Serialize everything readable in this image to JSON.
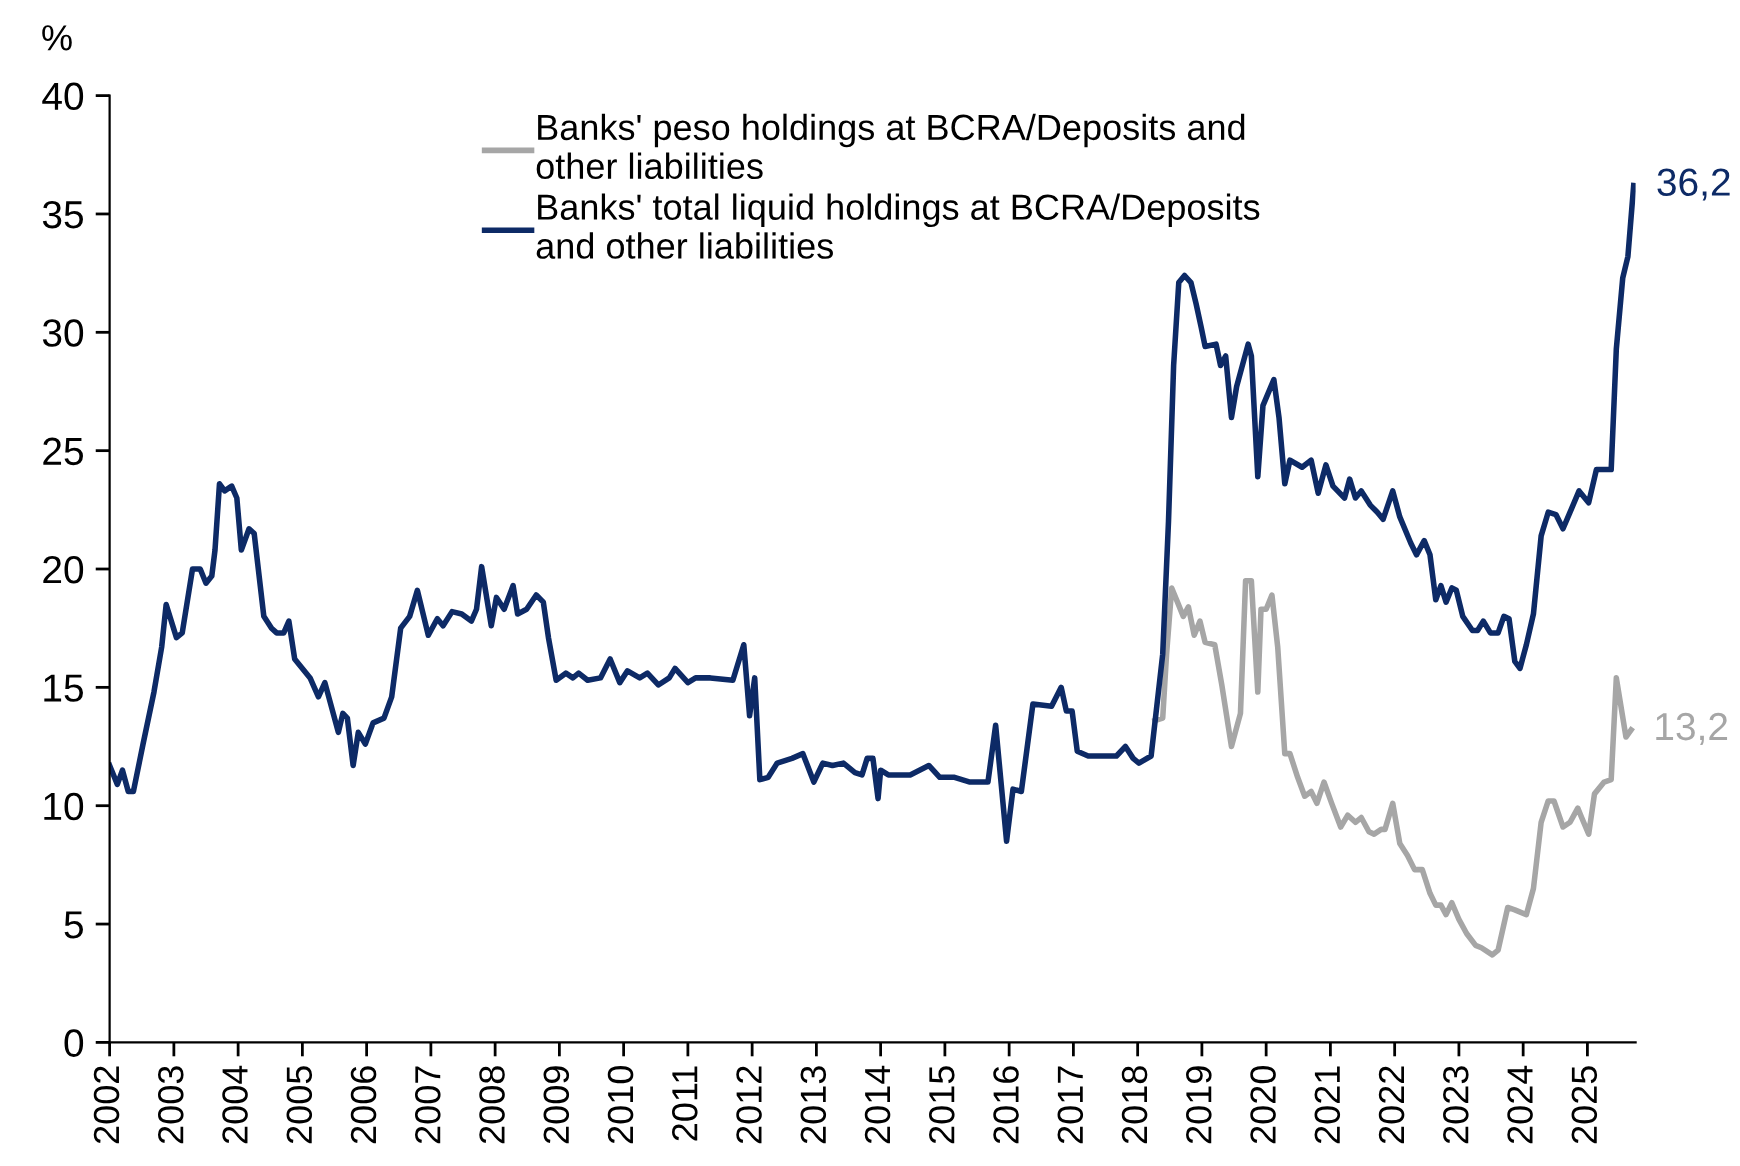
{
  "chart_data": {
    "type": "line",
    "ylabel": "%",
    "xlim": [
      2002,
      2025.75
    ],
    "xticks": [
      {
        "value": 2002,
        "label": "2002"
      },
      {
        "value": 2003,
        "label": "2003"
      },
      {
        "value": 2004,
        "label": "2004"
      },
      {
        "value": 2005,
        "label": "2005"
      },
      {
        "value": 2006,
        "label": "2006"
      },
      {
        "value": 2007,
        "label": "2007"
      },
      {
        "value": 2008,
        "label": "2008"
      },
      {
        "value": 2009,
        "label": "2009"
      },
      {
        "value": 2010,
        "label": "2010"
      },
      {
        "value": 2011,
        "label": "2011"
      },
      {
        "value": 2012,
        "label": "2012"
      },
      {
        "value": 2013,
        "label": "2013"
      },
      {
        "value": 2014,
        "label": "2014"
      },
      {
        "value": 2015,
        "label": "2015"
      },
      {
        "value": 2016,
        "label": "2016"
      },
      {
        "value": 2017,
        "label": "2017"
      },
      {
        "value": 2018,
        "label": "2018"
      },
      {
        "value": 2019,
        "label": "2019"
      },
      {
        "value": 2020,
        "label": "2020"
      },
      {
        "value": 2021,
        "label": "2021"
      },
      {
        "value": 2022,
        "label": "2022"
      },
      {
        "value": 2023,
        "label": "2023"
      },
      {
        "value": 2024,
        "label": "2024"
      },
      {
        "value": 2025,
        "label": "2025"
      }
    ],
    "ylim": [
      0,
      40
    ],
    "yticks": [
      0,
      5,
      10,
      15,
      20,
      25,
      30,
      35,
      40
    ],
    "grid": false,
    "legend": "top",
    "marker": "none",
    "line_style": "solid",
    "annotations": [
      {
        "text": "36,2",
        "x": 2025.72,
        "y": 36.2
      },
      {
        "text": "13,2",
        "x": 2025.68,
        "y": 13.2
      }
    ],
    "series": [
      {
        "name": "Banks' peso holdings at BCRA/Deposits and other liabilities",
        "color": "#a6a6a6",
        "x": [
          2018.27,
          2018.39,
          2018.45,
          2018.53,
          2018.62,
          2018.71,
          2018.79,
          2018.88,
          2018.97,
          2019.05,
          2019.2,
          2019.31,
          2019.46,
          2019.6,
          2019.68,
          2019.77,
          2019.87,
          2019.92,
          2020.0,
          2020.09,
          2020.18,
          2020.29,
          2020.37,
          2020.49,
          2020.6,
          2020.7,
          2020.79,
          2020.9,
          2021.02,
          2021.16,
          2021.27,
          2021.39,
          2021.48,
          2021.6,
          2021.68,
          2021.79,
          2021.85,
          2021.97,
          2022.08,
          2022.2,
          2022.31,
          2022.43,
          2022.55,
          2022.64,
          2022.72,
          2022.8,
          2022.89,
          2023.0,
          2023.12,
          2023.26,
          2023.35,
          2023.52,
          2023.61,
          2023.76,
          2023.87,
          2024.05,
          2024.16,
          2024.28,
          2024.39,
          2024.48,
          2024.62,
          2024.73,
          2024.85,
          2024.91,
          2025.02,
          2025.11,
          2025.26,
          2025.37,
          2025.45,
          2025.6,
          2025.68
        ],
        "values": [
          13.6,
          13.7,
          16.4,
          19.2,
          18.6,
          18.0,
          18.4,
          17.2,
          17.8,
          16.9,
          16.8,
          15.1,
          12.5,
          13.9,
          19.5,
          19.5,
          14.8,
          18.3,
          18.3,
          18.9,
          16.7,
          12.2,
          12.2,
          11.2,
          10.4,
          10.6,
          10.1,
          11.0,
          10.1,
          9.1,
          9.6,
          9.3,
          9.5,
          8.9,
          8.8,
          9.0,
          9.0,
          10.1,
          8.4,
          7.9,
          7.3,
          7.3,
          6.3,
          5.8,
          5.8,
          5.4,
          5.9,
          5.2,
          4.6,
          4.1,
          4.0,
          3.7,
          3.9,
          5.7,
          5.6,
          5.4,
          6.5,
          9.3,
          10.2,
          10.2,
          9.1,
          9.3,
          9.9,
          9.5,
          8.8,
          10.5,
          11.0,
          11.1,
          15.4,
          12.9,
          13.2
        ]
      },
      {
        "name": "Banks' total liquid holdings at BCRA/Deposits and other liabilities",
        "color": "#0d2a66",
        "x": [
          2002.0,
          2002.12,
          2002.2,
          2002.29,
          2002.37,
          2002.52,
          2002.69,
          2002.81,
          2002.88,
          2003.04,
          2003.13,
          2003.29,
          2003.41,
          2003.5,
          2003.59,
          2003.64,
          2003.71,
          2003.79,
          2003.9,
          2003.98,
          2004.05,
          2004.17,
          2004.25,
          2004.4,
          2004.52,
          2004.6,
          2004.71,
          2004.79,
          2004.88,
          2005.0,
          2005.12,
          2005.25,
          2005.35,
          2005.56,
          2005.63,
          2005.7,
          2005.79,
          2005.87,
          2005.98,
          2006.1,
          2006.27,
          2006.39,
          2006.53,
          2006.67,
          2006.79,
          2006.96,
          2007.1,
          2007.19,
          2007.33,
          2007.48,
          2007.63,
          2007.71,
          2007.79,
          2007.94,
          2008.02,
          2008.14,
          2008.28,
          2008.35,
          2008.49,
          2008.64,
          2008.75,
          2008.83,
          2008.95,
          2009.1,
          2009.21,
          2009.3,
          2009.44,
          2009.64,
          2009.79,
          2009.94,
          2010.06,
          2010.25,
          2010.37,
          2010.54,
          2010.71,
          2010.8,
          2011.0,
          2011.12,
          2011.35,
          2011.7,
          2011.87,
          2011.96,
          2012.04,
          2012.12,
          2012.25,
          2012.39,
          2012.62,
          2012.79,
          2012.96,
          2013.1,
          2013.25,
          2013.42,
          2013.6,
          2013.71,
          2013.79,
          2013.88,
          2013.96,
          2014.0,
          2014.12,
          2014.46,
          2014.75,
          2014.92,
          2015.15,
          2015.39,
          2015.67,
          2015.79,
          2015.96,
          2016.06,
          2016.19,
          2016.37,
          2016.66,
          2016.81,
          2016.89,
          2016.98,
          2017.06,
          2017.23,
          2017.46,
          2017.67,
          2017.81,
          2017.93,
          2018.02,
          2018.21,
          2018.39,
          2018.48,
          2018.56,
          2018.64,
          2018.73,
          2018.83,
          2018.91,
          2018.99,
          2019.05,
          2019.22,
          2019.29,
          2019.37,
          2019.46,
          2019.54,
          2019.72,
          2019.77,
          2019.87,
          2019.95,
          2020.12,
          2020.2,
          2020.29,
          2020.37,
          2020.56,
          2020.7,
          2020.81,
          2020.93,
          2021.04,
          2021.22,
          2021.3,
          2021.39,
          2021.48,
          2021.62,
          2021.73,
          2021.82,
          2021.97,
          2022.08,
          2022.25,
          2022.34,
          2022.46,
          2022.55,
          2022.64,
          2022.72,
          2022.8,
          2022.89,
          2022.96,
          2023.06,
          2023.21,
          2023.29,
          2023.38,
          2023.49,
          2023.61,
          2023.7,
          2023.78,
          2023.87,
          2023.95,
          2024.05,
          2024.16,
          2024.28,
          2024.39,
          2024.51,
          2024.62,
          2024.73,
          2024.87,
          2025.02,
          2025.14,
          2025.37,
          2025.45,
          2025.55,
          2025.63,
          2025.72
        ],
        "values": [
          11.7,
          10.9,
          11.5,
          10.6,
          10.6,
          12.6,
          14.8,
          16.7,
          18.5,
          17.1,
          17.3,
          20.0,
          20.0,
          19.4,
          19.7,
          20.8,
          23.6,
          23.3,
          23.5,
          23.0,
          20.8,
          21.7,
          21.5,
          18.0,
          17.5,
          17.3,
          17.3,
          17.8,
          16.2,
          15.8,
          15.4,
          14.6,
          15.2,
          13.1,
          13.9,
          13.7,
          11.7,
          13.1,
          12.6,
          13.5,
          13.7,
          14.6,
          17.5,
          18.0,
          19.1,
          17.2,
          17.9,
          17.6,
          18.2,
          18.1,
          17.8,
          18.3,
          20.1,
          17.6,
          18.8,
          18.3,
          19.3,
          18.1,
          18.3,
          18.9,
          18.6,
          17.1,
          15.3,
          15.6,
          15.4,
          15.6,
          15.3,
          15.4,
          16.2,
          15.2,
          15.7,
          15.4,
          15.6,
          15.1,
          15.4,
          15.8,
          15.2,
          15.4,
          15.4,
          15.3,
          16.8,
          13.8,
          15.4,
          11.1,
          11.2,
          11.8,
          12.0,
          12.2,
          11.0,
          11.8,
          11.7,
          11.8,
          11.4,
          11.3,
          12.0,
          12.0,
          10.3,
          11.5,
          11.3,
          11.3,
          11.7,
          11.2,
          11.2,
          11.0,
          11.0,
          13.4,
          8.5,
          10.7,
          10.6,
          14.3,
          14.2,
          15.0,
          14.0,
          14.0,
          12.3,
          12.1,
          12.1,
          12.1,
          12.5,
          12.0,
          11.8,
          12.1,
          16.4,
          22.0,
          28.6,
          32.1,
          32.4,
          32.1,
          31.2,
          30.2,
          29.4,
          29.5,
          28.6,
          29.0,
          26.4,
          27.7,
          29.5,
          29.0,
          23.9,
          26.9,
          28.0,
          26.4,
          23.6,
          24.6,
          24.3,
          24.6,
          23.2,
          24.4,
          23.5,
          23.0,
          23.8,
          23.0,
          23.3,
          22.7,
          22.4,
          22.1,
          23.3,
          22.2,
          21.1,
          20.6,
          21.2,
          20.6,
          18.7,
          19.3,
          18.6,
          19.2,
          19.1,
          18.0,
          17.4,
          17.4,
          17.8,
          17.3,
          17.3,
          18.0,
          17.9,
          16.1,
          15.8,
          16.8,
          18.1,
          21.4,
          22.4,
          22.3,
          21.7,
          22.4,
          23.3,
          22.8,
          24.2,
          24.2,
          29.3,
          32.3,
          33.2,
          36.2
        ]
      }
    ]
  }
}
